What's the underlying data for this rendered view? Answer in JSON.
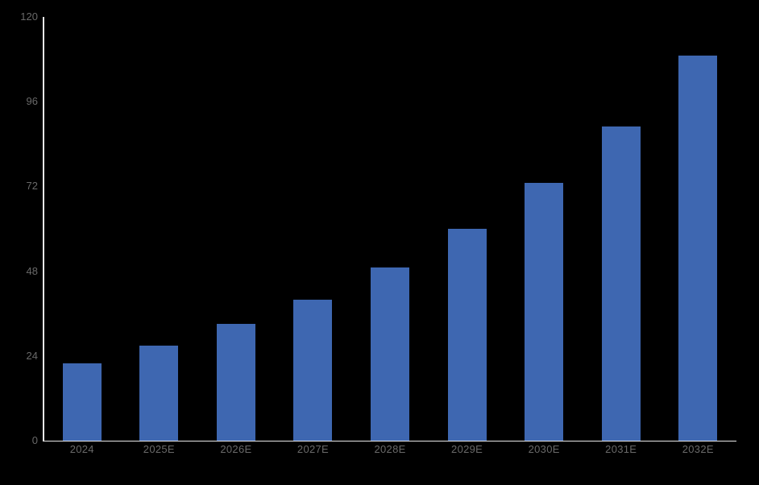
{
  "chart_data": {
    "type": "bar",
    "categories": [
      "2024",
      "2025E",
      "2026E",
      "2027E",
      "2028E",
      "2029E",
      "2030E",
      "2031E",
      "2032E"
    ],
    "values": [
      22,
      27,
      33,
      40,
      49,
      60,
      73,
      89,
      109
    ],
    "yticks": [
      0,
      24,
      48,
      72,
      96,
      120
    ],
    "ylim": [
      0,
      120
    ],
    "title": "",
    "xlabel": "",
    "ylabel": "",
    "grid": false,
    "legend": false,
    "colors": {
      "background": "#000000",
      "bar": "#3E67B1",
      "axis_line": "#E8E8E8",
      "tick_label": "#696969"
    }
  }
}
